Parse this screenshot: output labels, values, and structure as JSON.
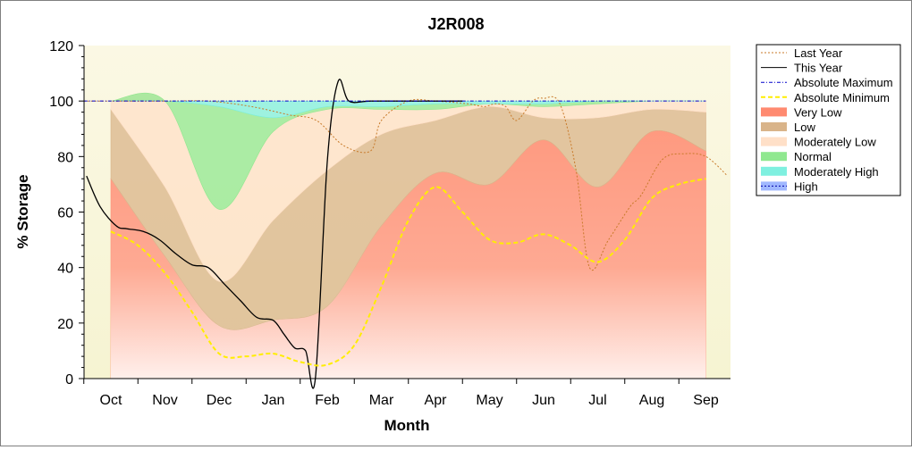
{
  "chart_data": {
    "type": "area",
    "title": "J2R008",
    "xlabel": "Month",
    "ylabel": "% Storage",
    "ylim": [
      0,
      120
    ],
    "yticks": [
      0,
      20,
      40,
      60,
      80,
      100,
      120
    ],
    "categories": [
      "Oct",
      "Nov",
      "Dec",
      "Jan",
      "Feb",
      "Mar",
      "Apr",
      "May",
      "Jun",
      "Jul",
      "Aug",
      "Sep"
    ],
    "grid": false,
    "legend_position": "top-right",
    "band_x": [
      0,
      1,
      2,
      3,
      4,
      5,
      6,
      7,
      8,
      9,
      10,
      11
    ],
    "bands": [
      {
        "name": "Very Low",
        "color": "#ff8a70",
        "lower": [
          0,
          0,
          0,
          0,
          0,
          0,
          0,
          0,
          0,
          0,
          0,
          0
        ],
        "upper": [
          72,
          44,
          19,
          21,
          26,
          55,
          74,
          70,
          86,
          69,
          89,
          82
        ]
      },
      {
        "name": "Low",
        "color": "#d9b48a",
        "lower": [
          72,
          44,
          19,
          21,
          26,
          55,
          74,
          70,
          86,
          69,
          89,
          82
        ],
        "upper": [
          97,
          69,
          35,
          57,
          75,
          88,
          93,
          98,
          94,
          94,
          97,
          96
        ]
      },
      {
        "name": "Moderately Low",
        "color": "#ffe0c8",
        "lower": [
          97,
          69,
          35,
          57,
          75,
          88,
          93,
          98,
          94,
          94,
          97,
          96
        ],
        "upper": [
          100,
          100,
          61,
          89,
          97,
          97,
          97,
          99,
          98,
          99,
          100,
          100
        ]
      },
      {
        "name": "Normal",
        "color": "#90e890",
        "lower": [
          100,
          100,
          61,
          89,
          97,
          97,
          97,
          99,
          98,
          99,
          100,
          100
        ],
        "upper": [
          100,
          100,
          98,
          94,
          98,
          98,
          99,
          99,
          99,
          100,
          100,
          100
        ]
      },
      {
        "name": "Moderately High",
        "color": "#7ff0e0",
        "lower": [
          100,
          100,
          98,
          94,
          98,
          98,
          99,
          99,
          99,
          100,
          100,
          100
        ],
        "upper": [
          100,
          100,
          100,
          100,
          100,
          100,
          100,
          100,
          100,
          100,
          100,
          100
        ]
      }
    ],
    "series": [
      {
        "name": "Last Year",
        "color": "#c87a2a",
        "dash": "2,2",
        "x": [
          -0.5,
          1,
          1.8,
          2.6,
          3.3,
          3.8,
          4.3,
          4.8,
          5.0,
          5.5,
          6.0,
          6.6,
          6.9,
          7.1,
          7.3,
          7.5,
          7.8,
          8.0,
          8.3,
          8.6,
          8.85,
          9.2,
          9.6,
          9.8,
          10.2,
          10.6,
          11.0,
          11.4
        ],
        "y": [
          100,
          100,
          100,
          98,
          95,
          93,
          84,
          82,
          93,
          100,
          100,
          99,
          98,
          99,
          98,
          93,
          100,
          101,
          99,
          75,
          40,
          50,
          62,
          66,
          79,
          81,
          80,
          73
        ]
      },
      {
        "name": "This Year",
        "color": "#000000",
        "dash": "",
        "x": [
          -0.45,
          -0.2,
          0.1,
          0.3,
          0.6,
          0.9,
          1.2,
          1.5,
          1.8,
          2.1,
          2.4,
          2.7,
          3.0,
          3.2,
          3.4,
          3.6,
          3.78,
          4.0,
          4.2,
          4.4,
          4.8,
          5.5,
          6.5
        ],
        "y": [
          73,
          62,
          55,
          54,
          53,
          50,
          45,
          41,
          40,
          34,
          28,
          22,
          21,
          16,
          11,
          10,
          0,
          78,
          107,
          100,
          100,
          100,
          100
        ]
      },
      {
        "name": "Absolute Maximum",
        "color": "#0000cc",
        "dash": "4,2,1,2",
        "x": [
          -0.5,
          11.0
        ],
        "y": [
          100,
          100
        ]
      },
      {
        "name": "Absolute Minimum",
        "color": "#ffee00",
        "dash": "5,3",
        "x": [
          0,
          0.5,
          1.0,
          1.5,
          2.0,
          2.5,
          3.0,
          3.5,
          4.0,
          4.5,
          5.0,
          5.5,
          6.0,
          6.5,
          7.0,
          7.5,
          8.0,
          8.5,
          9.0,
          9.5,
          10.0,
          10.5,
          11.0
        ],
        "y": [
          53,
          48,
          38,
          24,
          9,
          8,
          9,
          6,
          5,
          12,
          33,
          57,
          69,
          60,
          50,
          49,
          52,
          48,
          42,
          50,
          65,
          70,
          72
        ]
      }
    ],
    "legend": [
      {
        "label": "Last Year",
        "kind": "line",
        "color": "#c87a2a",
        "dash": "2,2"
      },
      {
        "label": "This Year",
        "kind": "line",
        "color": "#000000",
        "dash": ""
      },
      {
        "label": "Absolute Maximum",
        "kind": "line",
        "color": "#0000cc",
        "dash": "4,2,1,2"
      },
      {
        "label": "Absolute Minimum",
        "kind": "line",
        "color": "#ffee00",
        "dash": "5,3"
      },
      {
        "label": "Very Low",
        "kind": "box",
        "color": "#ff8a70"
      },
      {
        "label": "Low",
        "kind": "box",
        "color": "#d9b48a"
      },
      {
        "label": "Moderately Low",
        "kind": "box",
        "color": "#ffe0c8"
      },
      {
        "label": "Normal",
        "kind": "box",
        "color": "#90e890"
      },
      {
        "label": "Moderately High",
        "kind": "box",
        "color": "#7ff0e0"
      },
      {
        "label": "High",
        "kind": "box",
        "color": "#a0b8ff"
      }
    ]
  }
}
